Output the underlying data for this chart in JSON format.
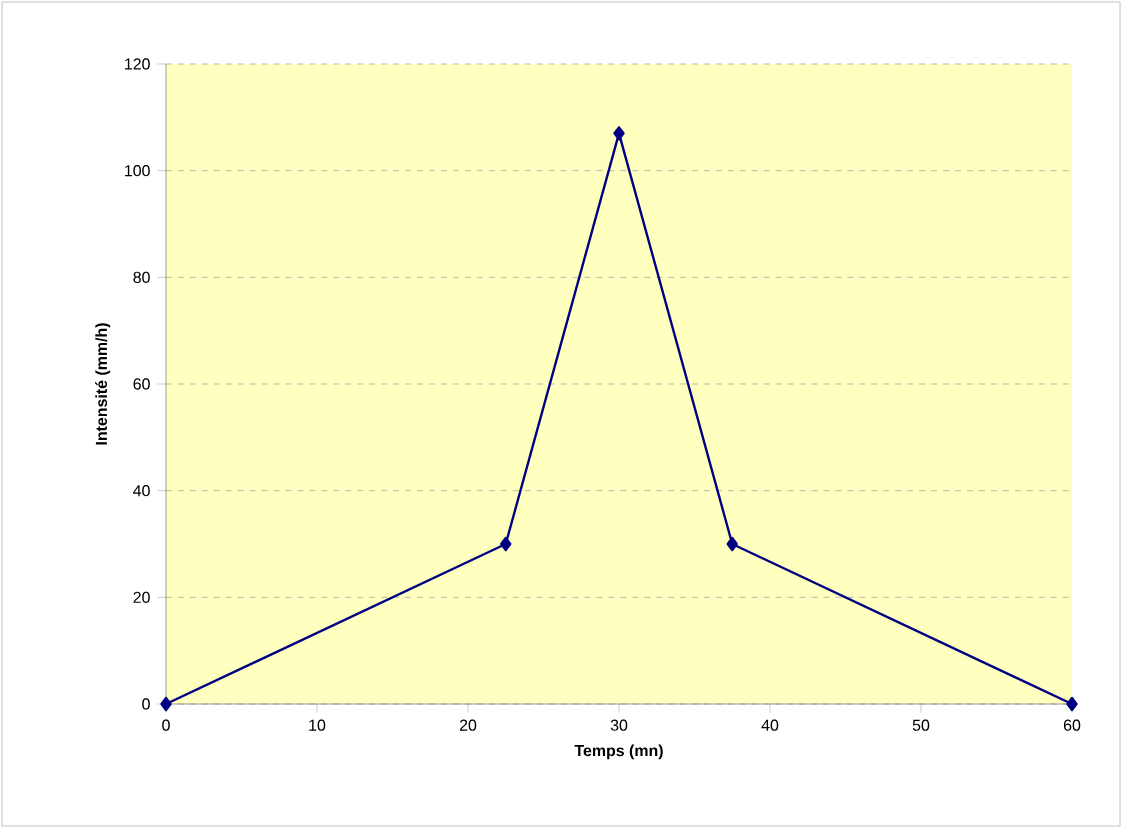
{
  "chart_data": {
    "type": "line",
    "xlabel": "Temps (mn)",
    "ylabel": "Intensité (mm/h)",
    "x": [
      0,
      22.5,
      30,
      37.5,
      60
    ],
    "series": [
      {
        "color": "#000080",
        "values": [
          0,
          30,
          107,
          30,
          0
        ]
      }
    ],
    "xlim": [
      0,
      60
    ],
    "xticks": [
      0,
      10,
      20,
      30,
      40,
      50,
      60
    ],
    "ylim": [
      0,
      120
    ],
    "yticks": [
      0,
      20,
      40,
      60,
      80,
      100,
      120
    ],
    "grid": "y",
    "marker": "diamond",
    "line_style": "solid"
  }
}
